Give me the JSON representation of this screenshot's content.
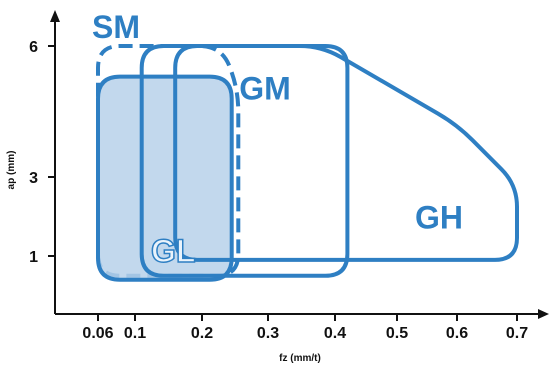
{
  "chart_data": {
    "type": "area",
    "xlabel": "fz (mm/t)",
    "ylabel": "ap (mm)",
    "x_ticks": [
      "0.06",
      "0.1",
      "0.2",
      "0.3",
      "0.4",
      "0.5",
      "0.6",
      "0.7"
    ],
    "x_tick_values": [
      0.06,
      0.1,
      0.2,
      0.3,
      0.4,
      0.5,
      0.6,
      0.7
    ],
    "y_ticks": [
      "1",
      "3",
      "6"
    ],
    "y_tick_values": [
      1,
      3,
      6
    ],
    "regions": [
      {
        "label": "SM",
        "style": "dashed",
        "fill": "none",
        "points": [
          [
            0.06,
            0.5
          ],
          [
            0.255,
            0.5
          ],
          [
            0.255,
            5.0
          ],
          [
            0.23,
            6.0
          ],
          [
            0.06,
            6.0
          ],
          [
            0.06,
            4.8
          ]
        ]
      },
      {
        "label": "GL",
        "style": "solid",
        "fill": "#b7d1ea",
        "points": [
          [
            0.06,
            0.4
          ],
          [
            0.245,
            0.4
          ],
          [
            0.245,
            5.3
          ],
          [
            0.06,
            5.3
          ]
        ]
      },
      {
        "label": "GM",
        "style": "solid",
        "fill": "none",
        "points": [
          [
            0.11,
            0.5
          ],
          [
            0.42,
            0.5
          ],
          [
            0.42,
            6.0
          ],
          [
            0.11,
            6.0
          ]
        ]
      },
      {
        "label": "GH",
        "style": "solid",
        "fill": "none",
        "points": [
          [
            0.16,
            0.9
          ],
          [
            0.7,
            0.9
          ],
          [
            0.7,
            2.8
          ],
          [
            0.6,
            4.2
          ],
          [
            0.38,
            6.0
          ],
          [
            0.16,
            6.0
          ]
        ]
      }
    ],
    "colors": {
      "accent": "#2e7fc3",
      "gl_fill": "#b7d1ea",
      "label_light": "#eaf3fb"
    }
  }
}
